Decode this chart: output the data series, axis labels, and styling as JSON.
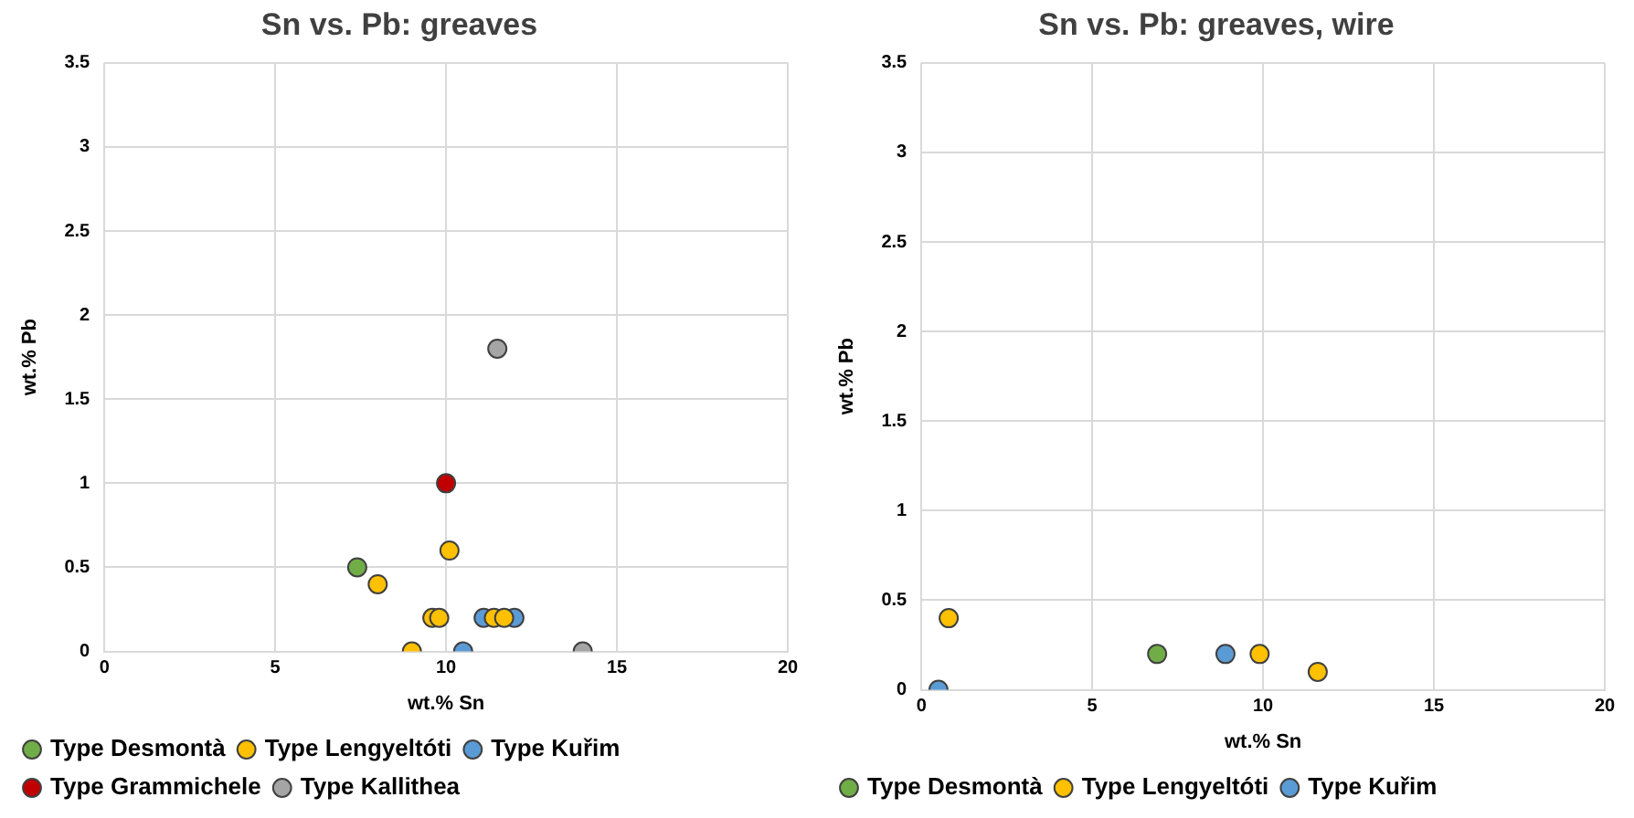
{
  "chart_data": [
    {
      "type": "scatter",
      "title": "Sn vs. Pb: greaves",
      "xlabel": "wt.% Sn",
      "ylabel": "wt.% Pb",
      "xlim": [
        0,
        20
      ],
      "xticks": [
        0,
        5,
        10,
        15,
        20
      ],
      "ylim": [
        0,
        3.5
      ],
      "yticks": [
        0,
        0.5,
        1,
        1.5,
        2,
        2.5,
        3,
        3.5
      ],
      "grid": true,
      "legend": "bottom",
      "marker": "circle",
      "series": [
        {
          "name": "Type Desmontà",
          "color": "#70ad47",
          "x": [
            7.4
          ],
          "values": [
            0.5
          ]
        },
        {
          "name": "Type Lengyeltóti",
          "color": "#ffc000",
          "x": [
            8,
            10.1,
            9.6,
            9.8,
            9,
            11.4,
            11.7
          ],
          "values": [
            0.4,
            0.6,
            0.2,
            0.2,
            0,
            0.2,
            0.2
          ]
        },
        {
          "name": "Type Kuřim",
          "color": "#5b9bd5",
          "x": [
            11.1,
            12,
            10.5
          ],
          "values": [
            0.2,
            0.2,
            0
          ]
        },
        {
          "name": "Type Grammichele",
          "color": "#c00000",
          "x": [
            10
          ],
          "values": [
            1
          ]
        },
        {
          "name": "Type Kallithea",
          "color": "#a5a5a5",
          "x": [
            11.5,
            14
          ],
          "values": [
            1.8,
            0
          ]
        }
      ]
    },
    {
      "type": "scatter",
      "title": "Sn vs. Pb: greaves, wire",
      "xlabel": "wt.% Sn",
      "ylabel": "wt.% Pb",
      "xlim": [
        0,
        20
      ],
      "xticks": [
        0,
        5,
        10,
        15,
        20
      ],
      "ylim": [
        0,
        3.5
      ],
      "yticks": [
        0,
        0.5,
        1,
        1.5,
        2,
        2.5,
        3,
        3.5
      ],
      "grid": true,
      "legend": "bottom",
      "marker": "circle",
      "series": [
        {
          "name": "Type Desmontà",
          "color": "#70ad47",
          "x": [
            6.9
          ],
          "values": [
            0.2
          ]
        },
        {
          "name": "Type Lengyeltóti",
          "color": "#ffc000",
          "x": [
            0.8,
            9.9,
            11.6
          ],
          "values": [
            0.4,
            0.2,
            0.1
          ]
        },
        {
          "name": "Type Kuřim",
          "color": "#5b9bd5",
          "x": [
            0.5,
            8.9
          ],
          "values": [
            0,
            0.2
          ]
        }
      ]
    }
  ]
}
